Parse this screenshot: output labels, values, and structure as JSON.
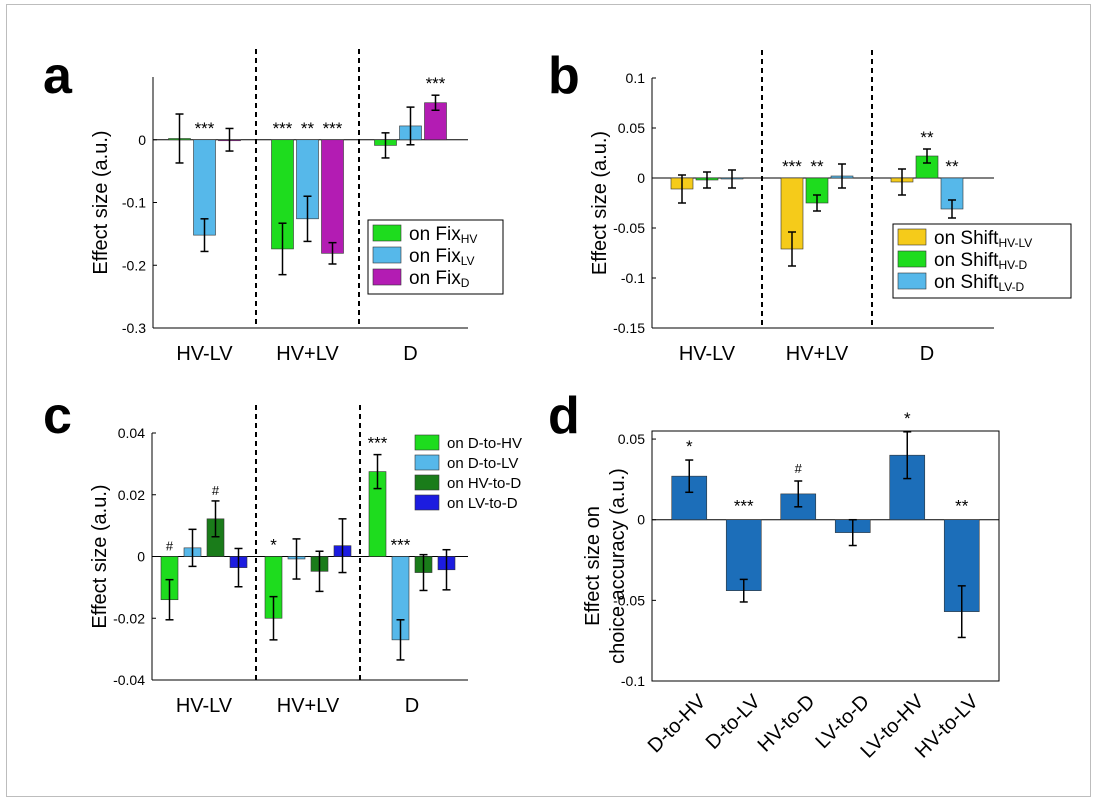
{
  "chart_data": [
    {
      "panel": "a",
      "type": "bar",
      "ylabel": "Effect size (a.u.)",
      "ylim": [
        -0.3,
        0.1
      ],
      "yticks": [
        0,
        -0.1,
        -0.2,
        -0.3
      ],
      "ytick_labels": [
        "0",
        "-0.1",
        "-0.2",
        "-0.3"
      ],
      "categories": [
        "HV-LV",
        "HV+LV",
        "D"
      ],
      "series": [
        {
          "name": "on Fix",
          "sub": "HV",
          "color": "#1edc1e",
          "values": [
            0.002,
            -0.174,
            -0.009
          ],
          "errors": [
            0.039,
            0.041,
            0.02
          ],
          "marks": [
            "",
            "***",
            ""
          ]
        },
        {
          "name": "on Fix",
          "sub": "LV",
          "color": "#56b8ea",
          "values": [
            -0.152,
            -0.126,
            0.022
          ],
          "errors": [
            0.026,
            0.036,
            0.03
          ],
          "marks": [
            "***",
            "**",
            ""
          ]
        },
        {
          "name": "on Fix",
          "sub": "D",
          "color": "#b31cb3",
          "values": [
            0.0,
            -0.181,
            0.059
          ],
          "errors": [
            0.018,
            0.017,
            0.012
          ],
          "marks": [
            "",
            "***",
            "***"
          ]
        }
      ]
    },
    {
      "panel": "b",
      "type": "bar",
      "ylabel": "Effect size (a.u.)",
      "ylim": [
        -0.15,
        0.1
      ],
      "yticks": [
        0.1,
        0.05,
        0,
        -0.05,
        -0.1,
        -0.15
      ],
      "ytick_labels": [
        "0.1",
        "0.05",
        "0",
        "-0.05",
        "-0.1",
        "-0.15"
      ],
      "categories": [
        "HV-LV",
        "HV+LV",
        "D"
      ],
      "series": [
        {
          "name": "on Shift",
          "sub": "HV-LV",
          "color": "#f5cb1a",
          "values": [
            -0.011,
            -0.071,
            -0.004
          ],
          "errors": [
            0.014,
            0.017,
            0.013
          ],
          "marks": [
            "",
            "***",
            ""
          ]
        },
        {
          "name": "on Shift",
          "sub": "HV-D",
          "color": "#1edc1e",
          "values": [
            -0.002,
            -0.025,
            0.022
          ],
          "errors": [
            0.008,
            0.008,
            0.007
          ],
          "marks": [
            "",
            "**",
            "**"
          ]
        },
        {
          "name": "on Shift",
          "sub": "LV-D",
          "color": "#56b8ea",
          "values": [
            -0.001,
            0.002,
            -0.031
          ],
          "errors": [
            0.009,
            0.012,
            0.009
          ],
          "marks": [
            "",
            "",
            "**"
          ]
        }
      ]
    },
    {
      "panel": "c",
      "type": "bar",
      "ylabel": "Effect size (a.u.)",
      "ylim": [
        -0.04,
        0.04
      ],
      "yticks": [
        0.04,
        0.02,
        0,
        -0.02,
        -0.04
      ],
      "ytick_labels": [
        "0.04",
        "0.02",
        "0",
        "-0.02",
        "-0.04"
      ],
      "categories": [
        "HV-LV",
        "HV+LV",
        "D"
      ],
      "series": [
        {
          "name": "on D-to-HV",
          "color": "#1edc1e",
          "values": [
            -0.014,
            -0.02,
            0.0275
          ],
          "errors": [
            0.0065,
            0.007,
            0.0055
          ],
          "marks": [
            "#",
            "*",
            "***"
          ]
        },
        {
          "name": "on D-to-LV",
          "color": "#56b8ea",
          "values": [
            0.0028,
            -0.0008,
            -0.027
          ],
          "errors": [
            0.006,
            0.0065,
            0.0065
          ],
          "marks": [
            "",
            "",
            "***"
          ]
        },
        {
          "name": "on HV-to-D",
          "color": "#1a7c1a",
          "values": [
            0.0122,
            -0.0048,
            -0.0052
          ],
          "errors": [
            0.0058,
            0.0065,
            0.0058
          ],
          "marks": [
            "#",
            "",
            ""
          ]
        },
        {
          "name": "on LV-to-D",
          "color": "#1c1ce0",
          "values": [
            -0.0036,
            0.0035,
            -0.0043
          ],
          "errors": [
            0.0062,
            0.0087,
            0.0065
          ],
          "marks": [
            "",
            "",
            ""
          ]
        }
      ]
    },
    {
      "panel": "d",
      "type": "bar",
      "ylabel": [
        "Effect size on",
        "choice accuracy (a.u.)"
      ],
      "ylim": [
        -0.1,
        0.055
      ],
      "yticks": [
        0.05,
        0,
        -0.05,
        -0.1
      ],
      "ytick_labels": [
        "0.05",
        "0",
        "-0.05",
        "-0.1"
      ],
      "categories": [
        "D-to-HV",
        "D-to-LV",
        "HV-to-D",
        "LV-to-D",
        "LV-to-HV",
        "HV-to-LV"
      ],
      "color": "#1c6eb9",
      "values": [
        0.027,
        -0.044,
        0.016,
        -0.008,
        0.04,
        -0.057
      ],
      "errors": [
        0.01,
        0.007,
        0.008,
        0.008,
        0.0145,
        0.016
      ],
      "marks": [
        "*",
        "***",
        "#",
        "",
        "*",
        "**"
      ]
    }
  ],
  "panel_letters": {
    "a": "a",
    "b": "b",
    "c": "c",
    "d": "d"
  }
}
